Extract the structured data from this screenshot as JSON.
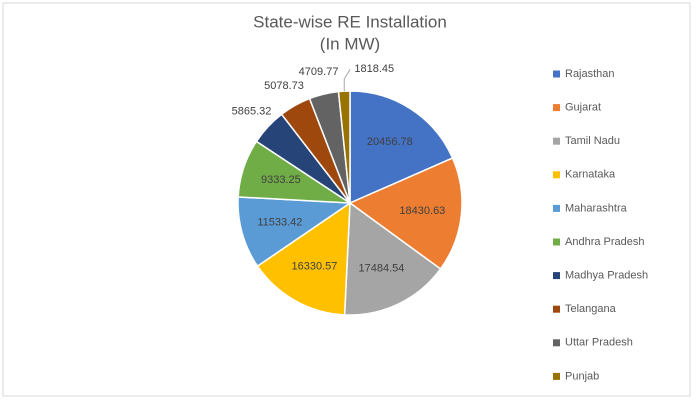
{
  "chart_data": {
    "type": "pie",
    "title": "State-wise RE Installation",
    "subtitle": "(In MW)",
    "categories": [
      "Rajasthan",
      "Gujarat",
      "Tamil Nadu",
      "Karnataka",
      "Maharashtra",
      "Andhra Pradesh",
      "Madhya Pradesh",
      "Telangana",
      "Uttar Pradesh",
      "Punjab"
    ],
    "values": [
      20456.78,
      18430.63,
      17484.54,
      16330.57,
      11533.42,
      9333.25,
      5865.32,
      5078.73,
      4709.77,
      1818.45
    ],
    "colors": [
      "#4472c4",
      "#ed7d31",
      "#a5a5a5",
      "#ffc000",
      "#5b9bd5",
      "#70ad47",
      "#264478",
      "#9e480e",
      "#636363",
      "#997300"
    ],
    "legend": "right"
  }
}
